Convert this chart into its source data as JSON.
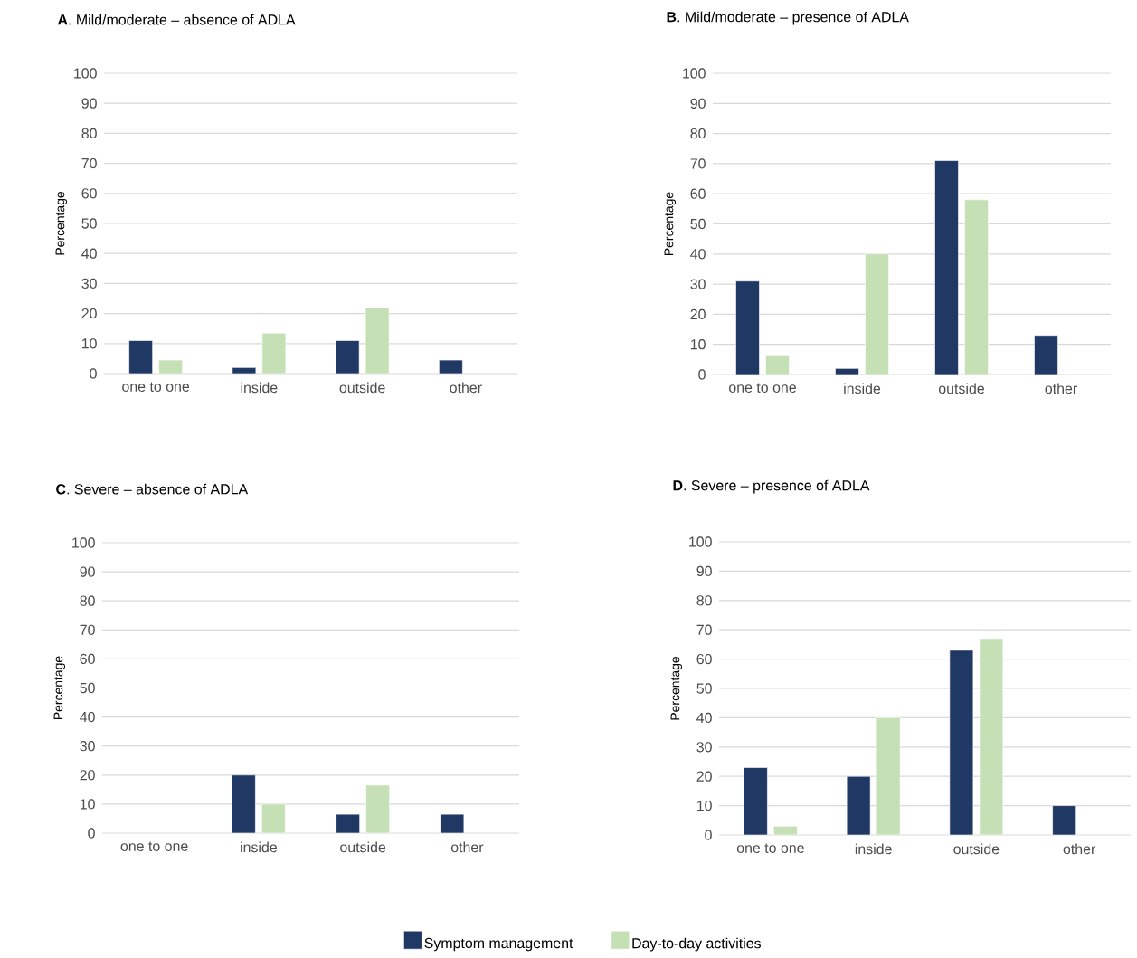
{
  "chart_data": [
    {
      "type": "bar",
      "title": "**A**. Mild/moderate – absence of ADLA",
      "ylabel": "Percentage",
      "categories": [
        "one to one",
        "inside",
        "outside",
        "other"
      ],
      "series": [
        {
          "color": "#203864",
          "values": [
            11,
            2,
            11,
            4.5
          ]
        },
        {
          "color": "#c5e0b4",
          "values": [
            4.5,
            13.5,
            22,
            null
          ]
        }
      ],
      "ylim": [
        0,
        100
      ],
      "yticks": [
        0,
        10,
        20,
        30,
        40,
        50,
        60,
        70,
        80,
        90,
        100
      ],
      "grid": "y"
    },
    {
      "type": "bar",
      "title": "**B**. Mild/moderate – presence of ADLA",
      "ylabel": "Percentage",
      "categories": [
        "one to one",
        "inside",
        "outside",
        "other"
      ],
      "series": [
        {
          "color": "#203864",
          "values": [
            31,
            2,
            71,
            13
          ]
        },
        {
          "color": "#c5e0b4",
          "values": [
            6.5,
            40,
            58,
            null
          ]
        }
      ],
      "ylim": [
        0,
        100
      ],
      "yticks": [
        0,
        10,
        20,
        30,
        40,
        50,
        60,
        70,
        80,
        90,
        100
      ],
      "grid": "y"
    },
    {
      "type": "bar",
      "title": "**C**. Severe – absence of ADLA",
      "ylabel": "Percentage",
      "categories": [
        "one to one",
        "inside",
        "outside",
        "other"
      ],
      "series": [
        {
          "color": "#203864",
          "values": [
            null,
            20,
            6.5,
            6.5
          ]
        },
        {
          "color": "#c5e0b4",
          "values": [
            null,
            10,
            16.5,
            null
          ]
        }
      ],
      "ylim": [
        0,
        100
      ],
      "yticks": [
        0,
        10,
        20,
        30,
        40,
        50,
        60,
        70,
        80,
        90,
        100
      ],
      "grid": "y"
    },
    {
      "type": "bar",
      "title": "**D**. Severe – presence of  ADLA",
      "ylabel": "Percentage",
      "categories": [
        "one to one",
        "inside",
        "outside",
        "other"
      ],
      "series": [
        {
          "name": "Symptom management",
          "color": "#203864",
          "values": [
            23,
            20,
            63,
            10
          ]
        },
        {
          "name": "Day-to-day activities",
          "color": "#c5e0b4",
          "values": [
            3,
            40,
            67,
            null
          ]
        }
      ],
      "ylim": [
        0,
        100
      ],
      "yticks": [
        0,
        10,
        20,
        30,
        40,
        50,
        60,
        70,
        80,
        90,
        100
      ],
      "grid": "y",
      "legend": "bottom"
    }
  ]
}
